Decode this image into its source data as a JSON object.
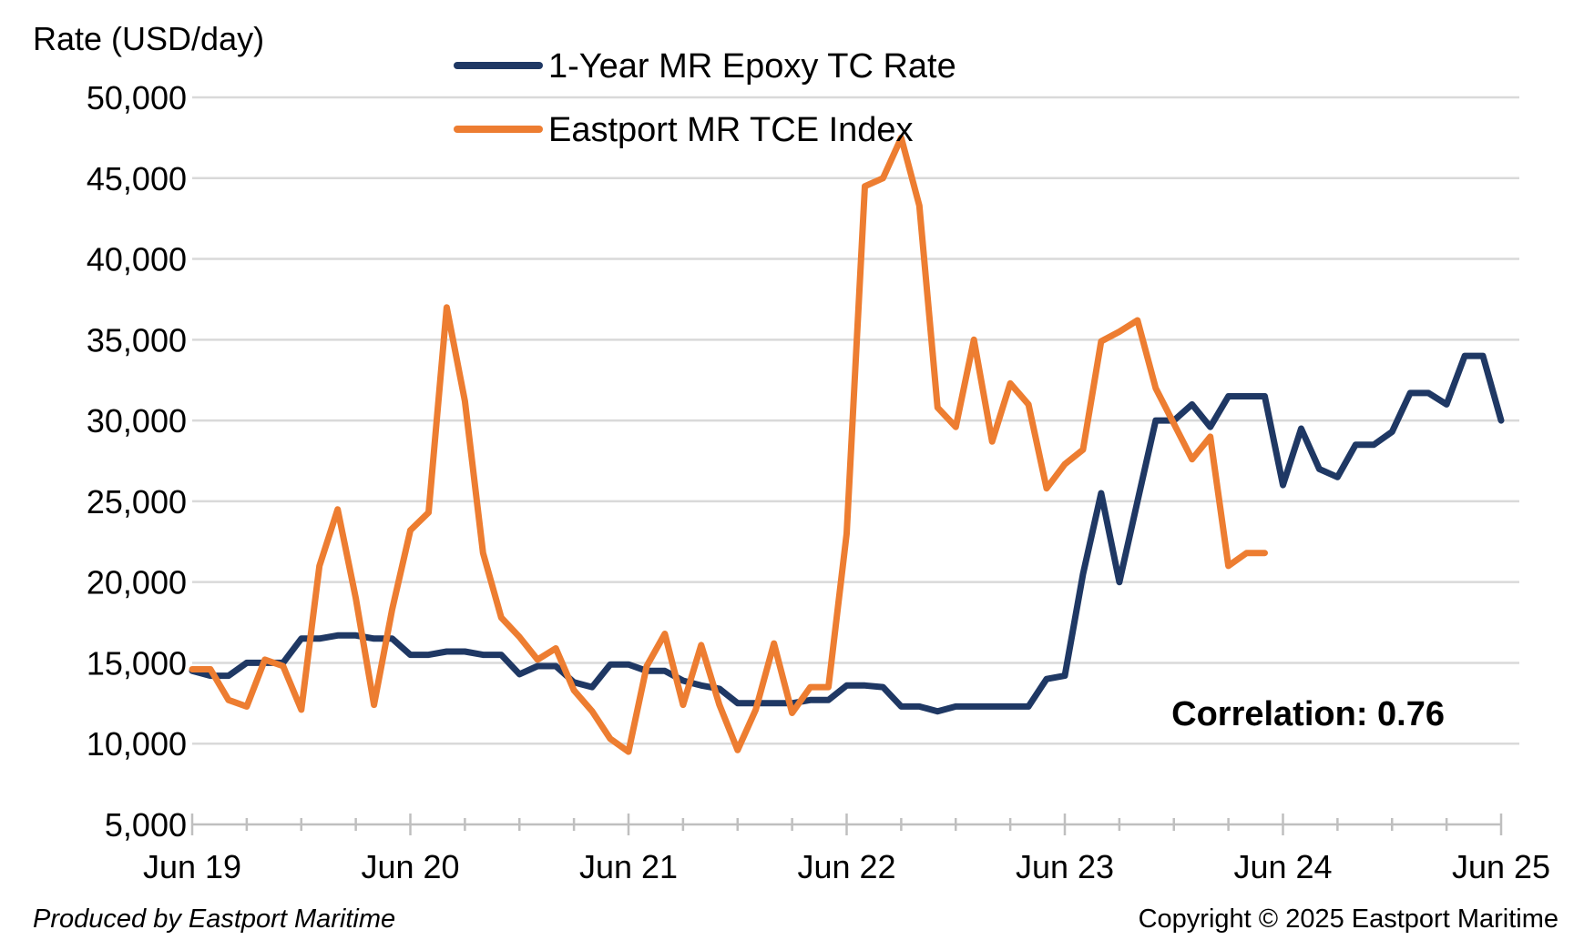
{
  "chart_data": {
    "type": "line",
    "ylabel": "Rate (USD/day)",
    "xlabel": "",
    "ylim": [
      5000,
      50000
    ],
    "yticks": [
      5000,
      10000,
      15000,
      20000,
      25000,
      30000,
      35000,
      40000,
      45000,
      50000
    ],
    "ytick_labels": [
      "5,000",
      "10,000",
      "15,000",
      "20,000",
      "25,000",
      "30,000",
      "35,000",
      "40,000",
      "45,000",
      "50,000"
    ],
    "xlim": [
      "2019-06",
      "2025-06"
    ],
    "xticks": [
      "2019-06",
      "2020-06",
      "2021-06",
      "2022-06",
      "2023-06",
      "2024-06",
      "2025-06"
    ],
    "xtick_labels": [
      "Jun 19",
      "Jun 20",
      "Jun 21",
      "Jun 22",
      "Jun 23",
      "Jun 24",
      "Jun 25"
    ],
    "grid": "horizontal",
    "legend_position": "top-center",
    "annotation": "Correlation: 0.76",
    "series": [
      {
        "name": "1-Year MR Epoxy TC Rate",
        "color": "#1f3864",
        "points": [
          [
            "2019-06",
            14500
          ],
          [
            "2019-07",
            14200
          ],
          [
            "2019-08",
            14200
          ],
          [
            "2019-09",
            15000
          ],
          [
            "2019-10",
            15000
          ],
          [
            "2019-11",
            15000
          ],
          [
            "2019-12",
            16500
          ],
          [
            "2020-01",
            16500
          ],
          [
            "2020-02",
            16700
          ],
          [
            "2020-03",
            16700
          ],
          [
            "2020-04",
            16500
          ],
          [
            "2020-05",
            16500
          ],
          [
            "2020-06",
            15500
          ],
          [
            "2020-07",
            15500
          ],
          [
            "2020-08",
            15700
          ],
          [
            "2020-09",
            15700
          ],
          [
            "2020-10",
            15500
          ],
          [
            "2020-11",
            15500
          ],
          [
            "2020-12",
            14300
          ],
          [
            "2021-01",
            14800
          ],
          [
            "2021-02",
            14800
          ],
          [
            "2021-03",
            13800
          ],
          [
            "2021-04",
            13500
          ],
          [
            "2021-05",
            14900
          ],
          [
            "2021-06",
            14900
          ],
          [
            "2021-07",
            14500
          ],
          [
            "2021-08",
            14500
          ],
          [
            "2021-09",
            13900
          ],
          [
            "2021-10",
            13600
          ],
          [
            "2021-11",
            13400
          ],
          [
            "2021-12",
            12500
          ],
          [
            "2022-01",
            12500
          ],
          [
            "2022-02",
            12500
          ],
          [
            "2022-03",
            12500
          ],
          [
            "2022-04",
            12700
          ],
          [
            "2022-05",
            12700
          ],
          [
            "2022-06",
            13600
          ],
          [
            "2022-07",
            13600
          ],
          [
            "2022-08",
            13500
          ],
          [
            "2022-09",
            12300
          ],
          [
            "2022-10",
            12300
          ],
          [
            "2022-11",
            12000
          ],
          [
            "2022-12",
            12300
          ],
          [
            "2023-01",
            12300
          ],
          [
            "2023-02",
            12300
          ],
          [
            "2023-03",
            12300
          ],
          [
            "2023-04",
            12300
          ],
          [
            "2023-05",
            14000
          ],
          [
            "2023-06",
            14200
          ],
          [
            "2023-07",
            20500
          ],
          [
            "2023-08",
            25500
          ],
          [
            "2023-09",
            20000
          ],
          [
            "2023-10",
            25000
          ],
          [
            "2023-11",
            30000
          ],
          [
            "2023-12",
            30000
          ],
          [
            "2024-01",
            31000
          ],
          [
            "2024-02",
            29600
          ],
          [
            "2024-03",
            31500
          ],
          [
            "2024-04",
            31500
          ],
          [
            "2024-05",
            31500
          ],
          [
            "2024-06",
            26000
          ],
          [
            "2024-07",
            29500
          ],
          [
            "2024-08",
            27000
          ],
          [
            "2024-09",
            26500
          ],
          [
            "2024-10",
            28500
          ],
          [
            "2024-11",
            28500
          ],
          [
            "2024-12",
            29300
          ],
          [
            "2025-01",
            31700
          ],
          [
            "2025-02",
            31700
          ],
          [
            "2025-03",
            31000
          ],
          [
            "2025-04",
            34000
          ],
          [
            "2025-05",
            34000
          ],
          [
            "2025-06",
            30000
          ]
        ]
      },
      {
        "name": "Eastport MR TCE Index",
        "color": "#ed7d31",
        "points": [
          [
            "2019-06",
            14600
          ],
          [
            "2019-07",
            14600
          ],
          [
            "2019-08",
            12700
          ],
          [
            "2019-09",
            12300
          ],
          [
            "2019-10",
            15200
          ],
          [
            "2019-11",
            14800
          ],
          [
            "2019-12",
            12100
          ],
          [
            "2020-01",
            21000
          ],
          [
            "2020-02",
            24500
          ],
          [
            "2020-03",
            19000
          ],
          [
            "2020-04",
            12400
          ],
          [
            "2020-05",
            18300
          ],
          [
            "2020-06",
            23200
          ],
          [
            "2020-07",
            24300
          ],
          [
            "2020-08",
            37000
          ],
          [
            "2020-09",
            31200
          ],
          [
            "2020-10",
            21800
          ],
          [
            "2020-11",
            17800
          ],
          [
            "2020-12",
            16600
          ],
          [
            "2021-01",
            15200
          ],
          [
            "2021-02",
            15900
          ],
          [
            "2021-03",
            13300
          ],
          [
            "2021-04",
            12000
          ],
          [
            "2021-05",
            10300
          ],
          [
            "2021-06",
            9500
          ],
          [
            "2021-07",
            14800
          ],
          [
            "2021-08",
            16800
          ],
          [
            "2021-09",
            12400
          ],
          [
            "2021-10",
            16100
          ],
          [
            "2021-11",
            12400
          ],
          [
            "2021-12",
            9600
          ],
          [
            "2022-01",
            12100
          ],
          [
            "2022-02",
            16200
          ],
          [
            "2022-03",
            11900
          ],
          [
            "2022-04",
            13500
          ],
          [
            "2022-05",
            13500
          ],
          [
            "2022-06",
            23000
          ],
          [
            "2022-07",
            44500
          ],
          [
            "2022-08",
            45000
          ],
          [
            "2022-09",
            47500
          ],
          [
            "2022-10",
            43300
          ],
          [
            "2022-11",
            30800
          ],
          [
            "2022-12",
            29600
          ],
          [
            "2023-01",
            35000
          ],
          [
            "2023-02",
            28700
          ],
          [
            "2023-03",
            32300
          ],
          [
            "2023-04",
            31000
          ],
          [
            "2023-05",
            25800
          ],
          [
            "2023-06",
            27300
          ],
          [
            "2023-07",
            28200
          ],
          [
            "2023-08",
            34900
          ],
          [
            "2023-09",
            35500
          ],
          [
            "2023-10",
            36200
          ],
          [
            "2023-11",
            32000
          ],
          [
            "2023-12",
            29800
          ],
          [
            "2024-01",
            27600
          ],
          [
            "2024-02",
            29000
          ],
          [
            "2024-03",
            21000
          ],
          [
            "2024-04",
            21800
          ],
          [
            "2024-05",
            21800
          ]
        ]
      }
    ]
  },
  "footer": {
    "left": "Produced by Eastport Maritime",
    "right": "Copyright © 2025 Eastport Maritime"
  }
}
